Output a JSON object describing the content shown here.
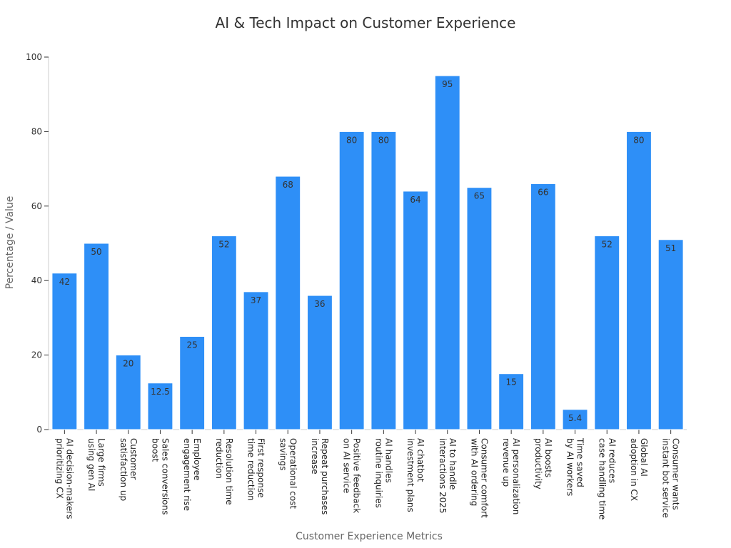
{
  "chart_data": {
    "type": "bar",
    "title": "AI & Tech Impact on Customer Experience",
    "xlabel": "Customer Experience Metrics",
    "ylabel": "Percentage / Value",
    "ylim": [
      0,
      100
    ],
    "yticks": [
      0,
      20,
      40,
      60,
      80,
      100
    ],
    "grid": false,
    "bar_color": "#2e8ff7",
    "categories": [
      [
        "AI decision-makers",
        "prioritizing CX"
      ],
      [
        "Large firms",
        "using gen AI"
      ],
      [
        "Customer",
        "satisfaction up"
      ],
      [
        "Sales conversions",
        "boost"
      ],
      [
        "Employee",
        "engagement rise"
      ],
      [
        "Resolution time",
        "reduction"
      ],
      [
        "First response",
        "time reduction"
      ],
      [
        "Operational cost",
        "savings"
      ],
      [
        "Repeat purchases",
        "increase"
      ],
      [
        "Positive feedback",
        "on AI service"
      ],
      [
        "AI handles",
        "routine inquiries"
      ],
      [
        "AI chatbot",
        "investment plans"
      ],
      [
        "AI to handle",
        "interactions 2025"
      ],
      [
        "Consumer comfort",
        "with AI ordering"
      ],
      [
        "AI personalization",
        "revenue up"
      ],
      [
        "AI boosts",
        "productivity"
      ],
      [
        "Time saved",
        "by AI workers"
      ],
      [
        "AI reduces",
        "case handling time"
      ],
      [
        "Global AI",
        "adoption in CX"
      ],
      [
        "Consumer wants",
        "instant bot service"
      ]
    ],
    "values": [
      42,
      50,
      20,
      12.5,
      25,
      52,
      37,
      68,
      36,
      80,
      80,
      64,
      95,
      65,
      15,
      66,
      5.4,
      52,
      80,
      51
    ]
  }
}
